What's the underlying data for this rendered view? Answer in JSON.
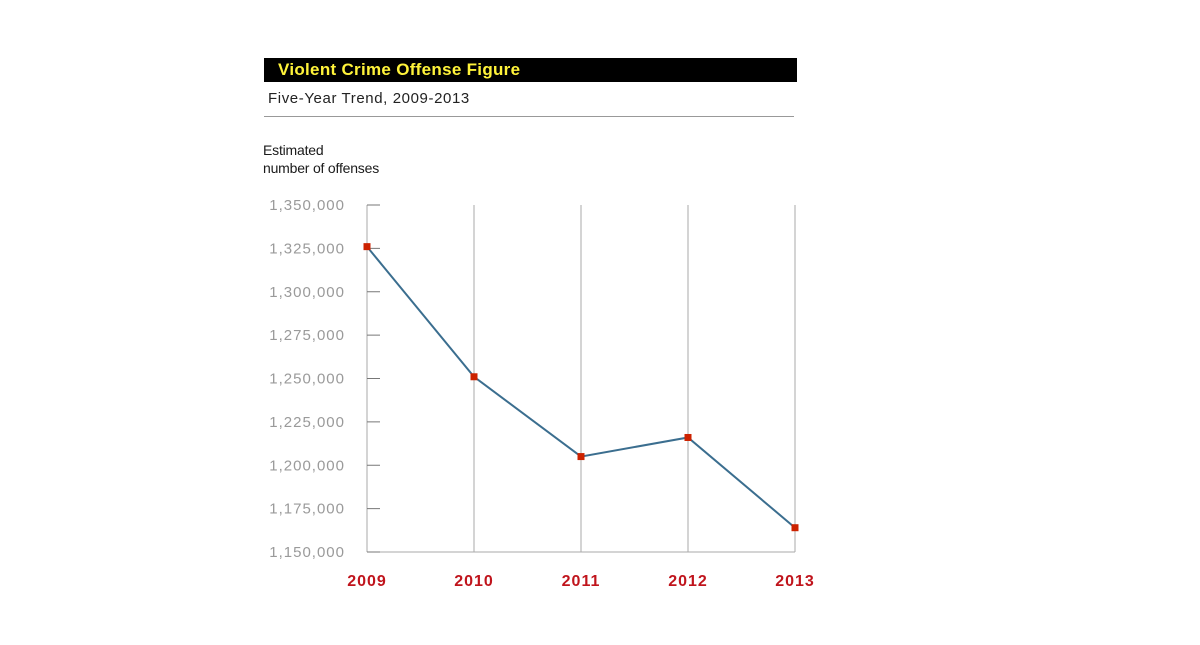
{
  "header": {
    "title": "Violent Crime Offense Figure",
    "subtitle": "Five-Year Trend, 2009-2013"
  },
  "colors": {
    "title_bg": "#000000",
    "title_text": "#fff33a",
    "line": "#3b6e8f",
    "marker": "#cc2200",
    "year_label": "#c0141c",
    "tick_label": "#9a9a9a",
    "grid": "#aaaaaa"
  },
  "chart_data": {
    "type": "line",
    "title": "Violent Crime Offense Figure",
    "subtitle": "Five-Year Trend, 2009-2013",
    "ylabel_lines": [
      "Estimated",
      "number of offenses"
    ],
    "xlabel": "",
    "categories": [
      "2009",
      "2010",
      "2011",
      "2012",
      "2013"
    ],
    "values": [
      1326000,
      1251000,
      1205000,
      1216000,
      1164000
    ],
    "ylim": [
      1150000,
      1350000
    ],
    "yticks": [
      1150000,
      1175000,
      1200000,
      1225000,
      1250000,
      1275000,
      1300000,
      1325000,
      1350000
    ],
    "ytick_labels": [
      "1,150,000",
      "1,175,000",
      "1,200,000",
      "1,225,000",
      "1,250,000",
      "1,275,000",
      "1,300,000",
      "1,325,000",
      "1,350,000"
    ],
    "grid": "vertical",
    "legend": "none"
  }
}
